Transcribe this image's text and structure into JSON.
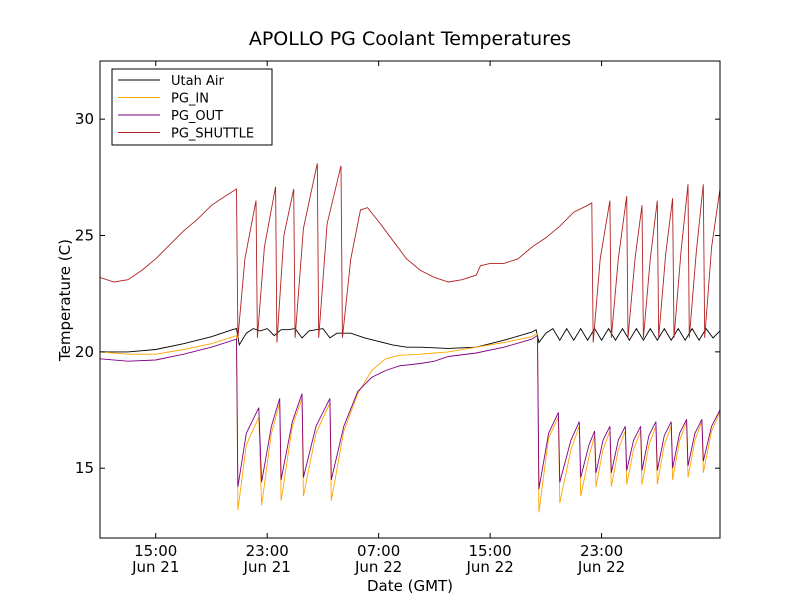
{
  "chart_data": {
    "type": "line",
    "title": "APOLLO PG Coolant Temperatures",
    "xlabel": "Date (GMT)",
    "ylabel": "Temperature (C)",
    "xlim": [
      11,
      55.5
    ],
    "ylim": [
      12,
      32.5
    ],
    "xticks": [
      {
        "x": 15,
        "time": "15:00",
        "date": "Jun 21"
      },
      {
        "x": 23,
        "time": "23:00",
        "date": "Jun 21"
      },
      {
        "x": 31,
        "time": "07:00",
        "date": "Jun 22"
      },
      {
        "x": 39,
        "time": "15:00",
        "date": "Jun 22"
      },
      {
        "x": 47,
        "time": "23:00",
        "date": "Jun 22"
      }
    ],
    "yticks": [
      15,
      20,
      25,
      30
    ],
    "legend_position": "top-left",
    "x_units": "hours since Jun 21 00:00 GMT",
    "series": [
      {
        "name": "Utah Air",
        "color": "#000000",
        "points": [
          [
            11,
            20.0
          ],
          [
            13,
            20.0
          ],
          [
            15,
            20.1
          ],
          [
            17,
            20.35
          ],
          [
            19,
            20.65
          ],
          [
            20.5,
            20.95
          ],
          [
            20.8,
            21.0
          ],
          [
            21,
            20.3
          ],
          [
            21.5,
            20.8
          ],
          [
            22,
            21.0
          ],
          [
            22.5,
            20.9
          ],
          [
            23,
            21.0
          ],
          [
            23.5,
            20.7
          ],
          [
            24,
            20.95
          ],
          [
            24.5,
            20.95
          ],
          [
            25,
            21.0
          ],
          [
            25.5,
            20.6
          ],
          [
            26,
            20.9
          ],
          [
            27,
            21.0
          ],
          [
            27.5,
            20.6
          ],
          [
            28,
            20.8
          ],
          [
            29,
            20.8
          ],
          [
            30,
            20.6
          ],
          [
            31,
            20.45
          ],
          [
            32,
            20.3
          ],
          [
            33,
            20.2
          ],
          [
            34,
            20.2
          ],
          [
            36,
            20.15
          ],
          [
            38,
            20.2
          ],
          [
            40,
            20.5
          ],
          [
            42,
            20.85
          ],
          [
            42.3,
            20.95
          ],
          [
            42.5,
            20.4
          ],
          [
            43,
            20.8
          ],
          [
            43.5,
            21.0
          ],
          [
            44,
            20.5
          ],
          [
            44.5,
            21.0
          ],
          [
            45,
            20.5
          ],
          [
            45.5,
            21.0
          ],
          [
            46,
            20.5
          ],
          [
            46.5,
            21.0
          ],
          [
            47,
            20.5
          ],
          [
            47.5,
            21.0
          ],
          [
            48,
            20.5
          ],
          [
            48.5,
            21.0
          ],
          [
            49,
            20.5
          ],
          [
            49.5,
            21.0
          ],
          [
            50,
            20.5
          ],
          [
            50.5,
            21.0
          ],
          [
            51,
            20.5
          ],
          [
            51.5,
            21.0
          ],
          [
            52,
            20.5
          ],
          [
            52.5,
            21.0
          ],
          [
            53,
            20.5
          ],
          [
            53.5,
            21.0
          ],
          [
            54,
            20.5
          ],
          [
            54.5,
            21.0
          ],
          [
            55,
            20.6
          ],
          [
            55.5,
            20.9
          ]
        ]
      },
      {
        "name": "PG_IN",
        "color": "#ffa500",
        "points": [
          [
            11,
            20.0
          ],
          [
            13,
            19.9
          ],
          [
            15,
            19.9
          ],
          [
            17,
            20.1
          ],
          [
            19,
            20.35
          ],
          [
            20.8,
            20.7
          ],
          [
            20.9,
            13.2
          ],
          [
            21.5,
            16.0
          ],
          [
            22.4,
            17.2
          ],
          [
            22.6,
            13.4
          ],
          [
            23.3,
            16.5
          ],
          [
            23.9,
            17.8
          ],
          [
            24.0,
            13.6
          ],
          [
            24.8,
            16.8
          ],
          [
            25.5,
            18.0
          ],
          [
            25.6,
            13.8
          ],
          [
            26.5,
            16.5
          ],
          [
            27.5,
            17.8
          ],
          [
            27.6,
            13.6
          ],
          [
            28.5,
            16.6
          ],
          [
            29.5,
            18.2
          ],
          [
            30.5,
            19.2
          ],
          [
            31.5,
            19.7
          ],
          [
            32.5,
            19.85
          ],
          [
            34,
            19.9
          ],
          [
            35,
            19.95
          ],
          [
            36,
            20.0
          ],
          [
            38,
            20.2
          ],
          [
            40,
            20.4
          ],
          [
            42,
            20.65
          ],
          [
            42.4,
            20.8
          ],
          [
            42.5,
            13.1
          ],
          [
            43.2,
            16.3
          ],
          [
            43.9,
            17.2
          ],
          [
            44.0,
            13.5
          ],
          [
            44.8,
            15.8
          ],
          [
            45.4,
            16.8
          ],
          [
            45.5,
            13.8
          ],
          [
            46.1,
            15.5
          ],
          [
            46.5,
            16.4
          ],
          [
            46.6,
            14.2
          ],
          [
            47.1,
            15.8
          ],
          [
            47.6,
            16.6
          ],
          [
            47.7,
            14.2
          ],
          [
            48.2,
            15.8
          ],
          [
            48.7,
            16.6
          ],
          [
            48.8,
            14.3
          ],
          [
            49.3,
            15.8
          ],
          [
            49.8,
            16.6
          ],
          [
            49.9,
            14.3
          ],
          [
            50.4,
            16.0
          ],
          [
            50.9,
            16.8
          ],
          [
            51.0,
            14.3
          ],
          [
            51.5,
            16.0
          ],
          [
            52.0,
            16.8
          ],
          [
            52.1,
            14.5
          ],
          [
            52.6,
            16.2
          ],
          [
            53.1,
            17.0
          ],
          [
            53.2,
            14.6
          ],
          [
            53.7,
            16.2
          ],
          [
            54.2,
            17.0
          ],
          [
            54.3,
            14.8
          ],
          [
            54.9,
            16.6
          ],
          [
            55.5,
            17.4
          ]
        ]
      },
      {
        "name": "PG_OUT",
        "color": "#800080",
        "points": [
          [
            11,
            19.7
          ],
          [
            13,
            19.6
          ],
          [
            15,
            19.65
          ],
          [
            17,
            19.9
          ],
          [
            19,
            20.2
          ],
          [
            20.8,
            20.55
          ],
          [
            20.9,
            14.2
          ],
          [
            21.5,
            16.5
          ],
          [
            22.4,
            17.6
          ],
          [
            22.6,
            14.4
          ],
          [
            23.3,
            16.8
          ],
          [
            23.9,
            18.0
          ],
          [
            24.0,
            14.5
          ],
          [
            24.8,
            17.0
          ],
          [
            25.5,
            18.2
          ],
          [
            25.6,
            14.6
          ],
          [
            26.5,
            16.8
          ],
          [
            27.5,
            18.0
          ],
          [
            27.6,
            14.5
          ],
          [
            28.5,
            16.8
          ],
          [
            29.5,
            18.3
          ],
          [
            30.5,
            18.9
          ],
          [
            31.5,
            19.2
          ],
          [
            32.5,
            19.4
          ],
          [
            34,
            19.5
          ],
          [
            35,
            19.6
          ],
          [
            36,
            19.8
          ],
          [
            38,
            19.95
          ],
          [
            40,
            20.2
          ],
          [
            42,
            20.55
          ],
          [
            42.4,
            20.7
          ],
          [
            42.5,
            14.1
          ],
          [
            43.2,
            16.5
          ],
          [
            43.9,
            17.4
          ],
          [
            44.0,
            14.4
          ],
          [
            44.8,
            16.2
          ],
          [
            45.4,
            17.0
          ],
          [
            45.5,
            14.6
          ],
          [
            46.1,
            16.0
          ],
          [
            46.5,
            16.6
          ],
          [
            46.6,
            14.8
          ],
          [
            47.1,
            16.2
          ],
          [
            47.6,
            16.8
          ],
          [
            47.7,
            14.8
          ],
          [
            48.2,
            16.2
          ],
          [
            48.7,
            16.8
          ],
          [
            48.8,
            14.9
          ],
          [
            49.3,
            16.2
          ],
          [
            49.8,
            16.8
          ],
          [
            49.9,
            14.9
          ],
          [
            50.4,
            16.4
          ],
          [
            50.9,
            17.0
          ],
          [
            51.0,
            14.9
          ],
          [
            51.5,
            16.4
          ],
          [
            52.0,
            17.0
          ],
          [
            52.1,
            15.0
          ],
          [
            52.6,
            16.5
          ],
          [
            53.1,
            17.1
          ],
          [
            53.2,
            15.1
          ],
          [
            53.7,
            16.5
          ],
          [
            54.2,
            17.1
          ],
          [
            54.3,
            15.3
          ],
          [
            54.9,
            16.8
          ],
          [
            55.5,
            17.5
          ]
        ]
      },
      {
        "name": "PG_SHUTTLE",
        "color": "#b22222",
        "points": [
          [
            11,
            23.2
          ],
          [
            12,
            23.0
          ],
          [
            13,
            23.1
          ],
          [
            14,
            23.5
          ],
          [
            15,
            24.0
          ],
          [
            16,
            24.6
          ],
          [
            17,
            25.2
          ],
          [
            18,
            25.7
          ],
          [
            19,
            26.3
          ],
          [
            20,
            26.7
          ],
          [
            20.8,
            27.0
          ],
          [
            20.9,
            20.6
          ],
          [
            21.4,
            24.0
          ],
          [
            22.2,
            26.5
          ],
          [
            22.3,
            20.6
          ],
          [
            22.8,
            24.5
          ],
          [
            23.6,
            27.1
          ],
          [
            23.7,
            20.4
          ],
          [
            24.2,
            25.0
          ],
          [
            24.9,
            27.0
          ],
          [
            25.0,
            20.6
          ],
          [
            25.6,
            25.3
          ],
          [
            26.6,
            28.1
          ],
          [
            26.7,
            20.6
          ],
          [
            27.3,
            25.5
          ],
          [
            28.3,
            28.0
          ],
          [
            28.4,
            20.6
          ],
          [
            29.0,
            24.0
          ],
          [
            29.7,
            26.1
          ],
          [
            30.2,
            26.2
          ],
          [
            31,
            25.6
          ],
          [
            32,
            24.8
          ],
          [
            33,
            24.0
          ],
          [
            34,
            23.5
          ],
          [
            35,
            23.2
          ],
          [
            36,
            23.0
          ],
          [
            37,
            23.1
          ],
          [
            38,
            23.3
          ],
          [
            38.3,
            23.7
          ],
          [
            39,
            23.8
          ],
          [
            40,
            23.8
          ],
          [
            41,
            24.0
          ],
          [
            42,
            24.5
          ],
          [
            43,
            24.9
          ],
          [
            44,
            25.4
          ],
          [
            45,
            26.0
          ],
          [
            46,
            26.3
          ],
          [
            46.3,
            26.4
          ],
          [
            46.4,
            20.4
          ],
          [
            46.9,
            24.0
          ],
          [
            47.6,
            26.5
          ],
          [
            47.7,
            20.6
          ],
          [
            48.2,
            24.0
          ],
          [
            48.8,
            26.7
          ],
          [
            48.9,
            20.6
          ],
          [
            49.4,
            24.0
          ],
          [
            49.9,
            26.3
          ],
          [
            50.0,
            20.6
          ],
          [
            50.5,
            24.0
          ],
          [
            51.0,
            26.5
          ],
          [
            51.1,
            20.6
          ],
          [
            51.6,
            24.2
          ],
          [
            52.1,
            26.6
          ],
          [
            52.2,
            20.6
          ],
          [
            52.7,
            24.3
          ],
          [
            53.2,
            27.2
          ],
          [
            53.3,
            20.6
          ],
          [
            53.8,
            24.3
          ],
          [
            54.3,
            27.2
          ],
          [
            54.4,
            20.6
          ],
          [
            54.9,
            24.5
          ],
          [
            55.5,
            27.0
          ]
        ]
      }
    ]
  }
}
